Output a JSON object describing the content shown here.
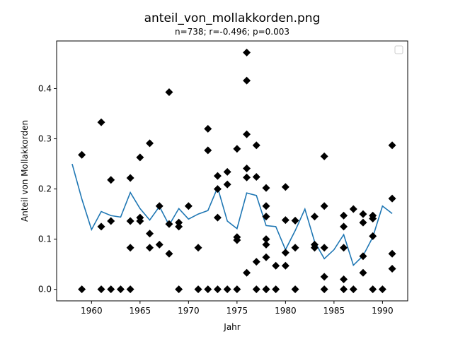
{
  "chart_data": {
    "type": "scatter",
    "title": "anteil_von_mollakkorden.png",
    "subtitle": "n=738; r=-0.496; p=0.003",
    "xlabel": "Jahr",
    "ylabel": "Anteil von Mollakkorden",
    "xlim": [
      1956.4,
      1992.6
    ],
    "ylim": [
      -0.023,
      0.495
    ],
    "xticks": [
      1960,
      1965,
      1970,
      1975,
      1980,
      1985,
      1990
    ],
    "yticks": [
      0.0,
      0.1,
      0.2,
      0.3,
      0.4
    ],
    "ytick_labels": [
      "0.0",
      "0.1",
      "0.2",
      "0.3",
      "0.4"
    ],
    "grid": false,
    "legend": "top-right, empty",
    "colors": {
      "points": "#000000",
      "line": "#1f77b4"
    },
    "series": [
      {
        "kind": "points",
        "x": [
          1959,
          1959,
          1961,
          1961,
          1961,
          1962,
          1962,
          1962,
          1963,
          1964,
          1964,
          1964,
          1964,
          1965,
          1965,
          1965,
          1966,
          1966,
          1966,
          1967,
          1967,
          1968,
          1968,
          1968,
          1969,
          1969,
          1969,
          1970,
          1971,
          1971,
          1972,
          1972,
          1972,
          1973,
          1973,
          1973,
          1973,
          1974,
          1974,
          1974,
          1975,
          1975,
          1975,
          1975,
          1976,
          1976,
          1976,
          1976,
          1976,
          1976,
          1977,
          1977,
          1977,
          1977,
          1978,
          1978,
          1978,
          1978,
          1978,
          1978,
          1978,
          1978,
          1979,
          1979,
          1980,
          1980,
          1980,
          1980,
          1981,
          1981,
          1981,
          1983,
          1983,
          1983,
          1984,
          1984,
          1984,
          1984,
          1984,
          1986,
          1986,
          1986,
          1986,
          1986,
          1987,
          1987,
          1988,
          1988,
          1988,
          1988,
          1989,
          1989,
          1989,
          1989,
          1990,
          1991,
          1991,
          1991,
          1991
        ],
        "y": [
          0.268,
          0.0,
          0.333,
          0.125,
          0.0,
          0.218,
          0.136,
          0.0,
          0.0,
          0.222,
          0.136,
          0.083,
          0.0,
          0.263,
          0.143,
          0.136,
          0.291,
          0.111,
          0.083,
          0.166,
          0.089,
          0.393,
          0.13,
          0.071,
          0.133,
          0.125,
          0.0,
          0.166,
          0.083,
          0.0,
          0.32,
          0.277,
          0.0,
          0.226,
          0.2,
          0.143,
          0.0,
          0.234,
          0.209,
          0.0,
          0.28,
          0.104,
          0.098,
          0.0,
          0.472,
          0.416,
          0.309,
          0.241,
          0.223,
          0.033,
          0.287,
          0.224,
          0.055,
          0.0,
          0.202,
          0.166,
          0.145,
          0.1,
          0.089,
          0.064,
          0.0,
          0.0,
          0.047,
          0.0,
          0.204,
          0.138,
          0.073,
          0.047,
          0.137,
          0.083,
          0.0,
          0.145,
          0.089,
          0.083,
          0.265,
          0.166,
          0.083,
          0.025,
          0.0,
          0.147,
          0.125,
          0.083,
          0.02,
          0.0,
          0.16,
          0.0,
          0.15,
          0.133,
          0.066,
          0.033,
          0.147,
          0.141,
          0.106,
          0.0,
          0.0,
          0.287,
          0.181,
          0.071,
          0.041
        ]
      },
      {
        "kind": "line",
        "x": [
          1958,
          1959,
          1960,
          1961,
          1962,
          1963,
          1964,
          1965,
          1966,
          1967,
          1968,
          1969,
          1970,
          1971,
          1972,
          1973,
          1974,
          1975,
          1976,
          1977,
          1978,
          1979,
          1980,
          1981,
          1982,
          1983,
          1984,
          1985,
          1986,
          1987,
          1988,
          1989,
          1990,
          1991
        ],
        "y": [
          0.25,
          0.18,
          0.119,
          0.155,
          0.147,
          0.144,
          0.193,
          0.161,
          0.138,
          0.165,
          0.128,
          0.161,
          0.14,
          0.15,
          0.157,
          0.203,
          0.136,
          0.121,
          0.192,
          0.187,
          0.127,
          0.125,
          0.079,
          0.117,
          0.16,
          0.095,
          0.061,
          0.079,
          0.109,
          0.048,
          0.067,
          0.104,
          0.166,
          0.151
        ]
      }
    ]
  }
}
